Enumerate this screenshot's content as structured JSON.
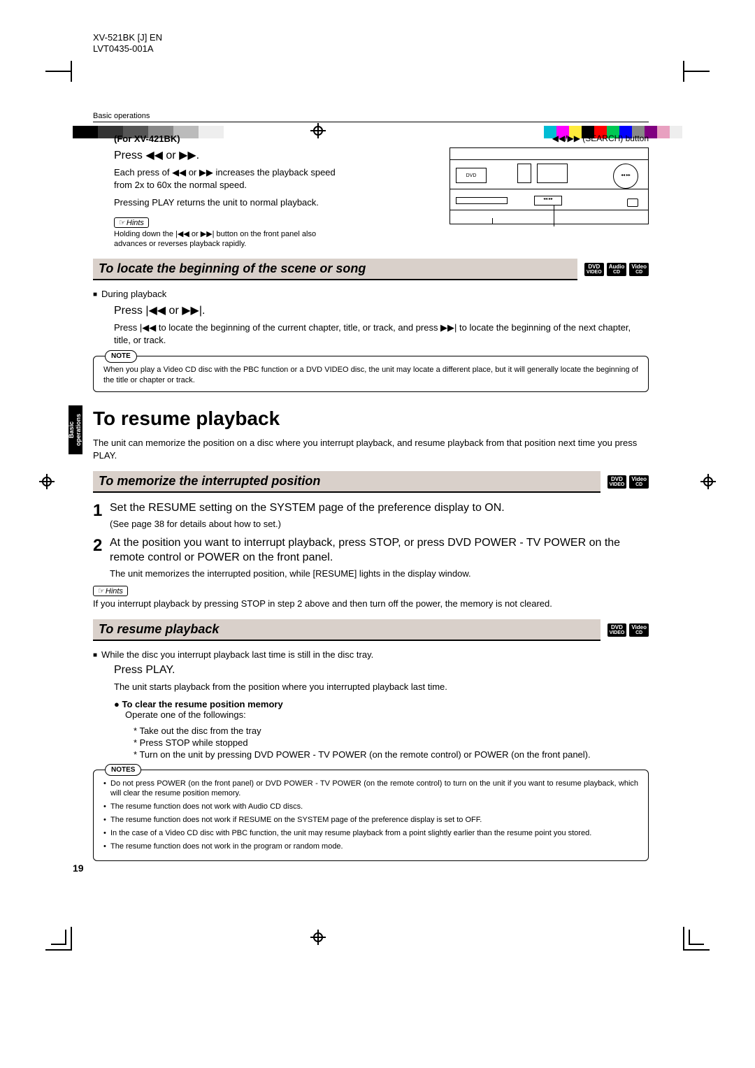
{
  "meta": {
    "model": "XV-521BK [J] EN",
    "doc": "LVT0435-001A"
  },
  "grad_left": [
    "#000000",
    "#000000",
    "#333333",
    "#333333",
    "#555555",
    "#555555",
    "#888888",
    "#888888",
    "#bbbbbb",
    "#bbbbbb",
    "#eeeeee",
    "#eeeeee"
  ],
  "grad_right": [
    "#00bcd4",
    "#ff00ff",
    "#ffeb3b",
    "#000000",
    "#ff0000",
    "#00c853",
    "#0000ff",
    "#888888",
    "#800080",
    "#e8a0c0",
    "#eeeeee"
  ],
  "section_header": "Basic operations",
  "side_tab": "Basic operations",
  "page_num": "19",
  "fig": {
    "caption": "◀◀/▶▶ (SEARCH) button",
    "tray": "DVD",
    "search": "◂◂  ▸▸"
  },
  "s1": {
    "for": "(For XV-421BK)",
    "press": "Press ◀◀ or ▶▶.",
    "p1": "Each press of ◀◀ or ▶▶ increases the playback speed from 2x to 60x the normal speed.",
    "p2": "Pressing PLAY returns the unit to normal playback.",
    "hints": "Hints",
    "hint_text": "Holding down the |◀◀ or ▶▶| button on the front panel also advances or reverses playback rapidly."
  },
  "locate": {
    "title": "To locate the beginning of the scene or song",
    "badges": [
      {
        "l1": "DVD",
        "l2": "VIDEO"
      },
      {
        "l1": "Audio",
        "l2": "CD"
      },
      {
        "l1": "Video",
        "l2": "CD"
      }
    ],
    "during": "During playback",
    "press": "Press |◀◀ or ▶▶|.",
    "body": "Press |◀◀ to locate the beginning of the current chapter, title, or track, and press ▶▶| to locate the beginning of the next chapter, title, or track.",
    "note_label": "NOTE",
    "note": "When you play a Video CD disc with the PBC function or a DVD VIDEO disc, the unit may locate a different place, but it will generally locate the beginning of the title or chapter or track."
  },
  "resume": {
    "h2": "To resume playback",
    "intro": "The unit can memorize the position on a disc where you interrupt playback, and resume playback from that position next time you press PLAY.",
    "mem_title": "To memorize the interrupted position",
    "mem_badges": [
      {
        "l1": "DVD",
        "l2": "VIDEO"
      },
      {
        "l1": "Video",
        "l2": "CD"
      }
    ],
    "step1": "Set the RESUME setting on the SYSTEM page of the preference display to ON.",
    "step1_sub": "(See page 38 for details about how to set.)",
    "step2": "At the position you want to interrupt playback, press STOP, or press DVD POWER - TV POWER on the remote control or POWER on the front panel.",
    "step2_sub": "The unit memorizes the interrupted position, while [RESUME] lights in the display window.",
    "hints": "Hints",
    "hint_text": "If you interrupt playback by pressing STOP in step 2 above and then turn off the power, the memory is not cleared.",
    "res_title": "To resume playback",
    "res_badges": [
      {
        "l1": "DVD",
        "l2": "VIDEO"
      },
      {
        "l1": "Video",
        "l2": "CD"
      }
    ],
    "while": "While the disc you interrupt playback last time is still in the disc tray.",
    "press": "Press PLAY.",
    "press_sub": "The unit starts playback from the position where you interrupted playback last time.",
    "clear_head": "To clear the resume position memory",
    "clear_intro": "Operate one of the followings:",
    "clear_list": [
      "Take out the disc from the tray",
      "Press STOP while stopped",
      "Turn on the unit by pressing DVD POWER - TV POWER (on the remote control) or POWER (on the front panel)."
    ],
    "notes_label": "NOTES",
    "notes": [
      "Do not press POWER (on the front panel) or DVD POWER - TV POWER (on the remote control) to turn on the unit if you want to resume playback, which will clear the resume position memory.",
      "The resume function does not work with Audio CD discs.",
      "The resume function does not work if RESUME on the SYSTEM page of the preference display is set to OFF.",
      "In the case of a Video CD disc with PBC function, the unit may resume playback from a point slightly earlier than the resume point you stored.",
      "The resume function does not work in the program or random mode."
    ]
  }
}
